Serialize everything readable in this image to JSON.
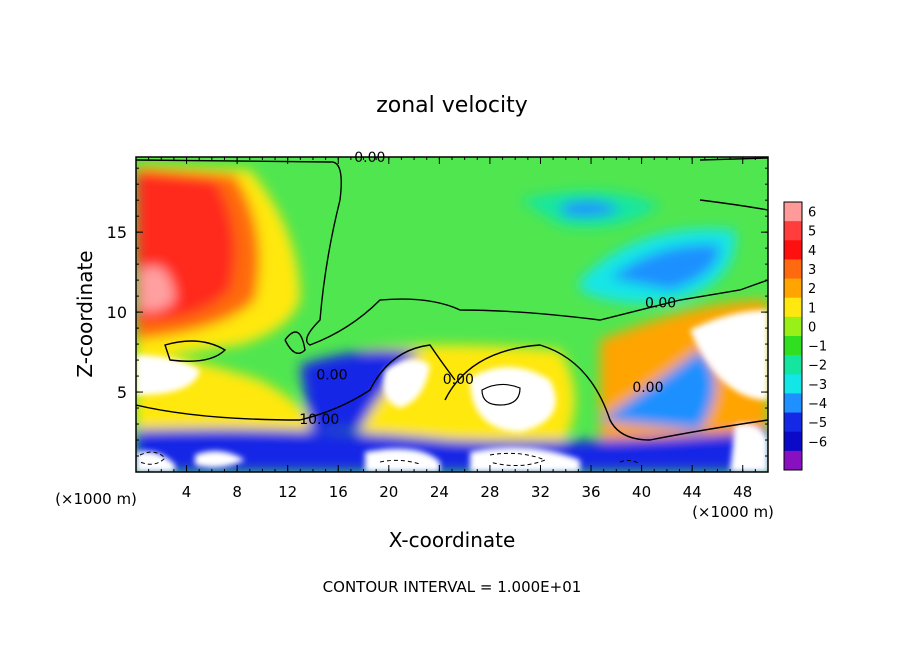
{
  "chart_data": {
    "type": "heatmap",
    "title": "zonal velocity",
    "xlabel": "X-coordinate",
    "ylabel": "Z-coordinate",
    "x_unit_left": "(×1000 m)",
    "x_unit_right": "(×1000 m)",
    "xlim": [
      0,
      50
    ],
    "ylim": [
      0,
      19.7
    ],
    "x_ticks": [
      4,
      8,
      12,
      16,
      20,
      24,
      28,
      32,
      36,
      40,
      44,
      48
    ],
    "y_ticks": [
      5,
      10,
      15
    ],
    "footer": "CONTOUR INTERVAL = 1.000E+01",
    "contour_labels": [
      {
        "text": "0.00",
        "x": 18.5,
        "y": 19.4
      },
      {
        "text": "0.00",
        "x": 41.5,
        "y": 10.3
      },
      {
        "text": "0.00",
        "x": 15.5,
        "y": 5.8
      },
      {
        "text": "0.00",
        "x": 25.5,
        "y": 5.5
      },
      {
        "text": "0.00",
        "x": 40.5,
        "y": 5.0
      },
      {
        "text": "10.00",
        "x": 14.5,
        "y": 3.0
      }
    ],
    "colorbar": {
      "labels": [
        "6",
        "5",
        "4",
        "3",
        "2",
        "1",
        "0",
        "−1",
        "−2",
        "−3",
        "−4",
        "−5",
        "−6"
      ],
      "colors": [
        "#ff9a9a",
        "#ff3d3d",
        "#ff1010",
        "#ff6a10",
        "#ffa400",
        "#ffe810",
        "#98f018",
        "#30e020",
        "#14e6a0",
        "#12e6e6",
        "#1e90ff",
        "#1428e6",
        "#0a0ac8",
        "#8810c0"
      ]
    },
    "palette": {
      "background": "#50e650",
      "positive": "#ff2a1a",
      "strong_positive": "#ffa0a0",
      "negative": "#1428e6",
      "saturated": "#ffffff"
    }
  }
}
